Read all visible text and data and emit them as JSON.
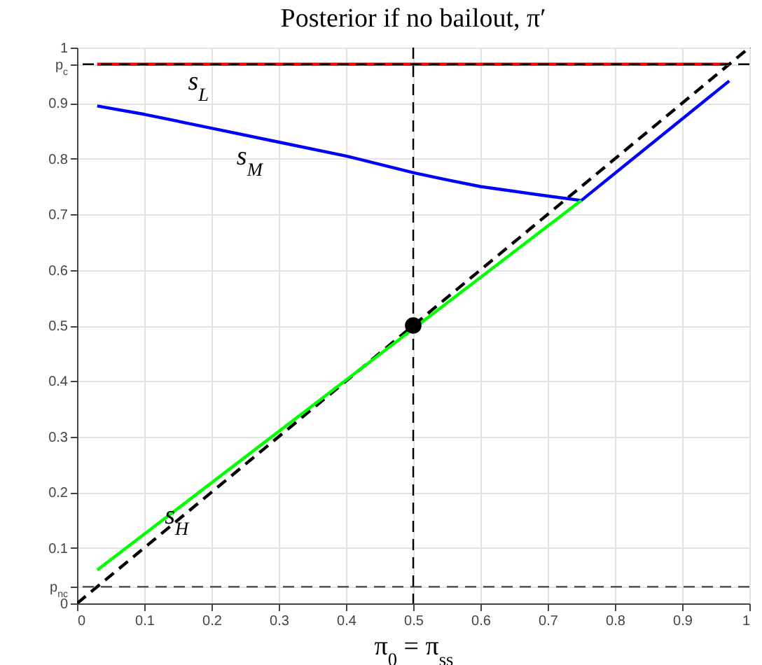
{
  "chart_data": {
    "type": "line",
    "title": "Posterior if no bailout, π′",
    "xlabel": "π$_{0}$ = π$_{ss}$",
    "xlim": [
      0,
      1
    ],
    "xticks": [
      0,
      0.1,
      0.2,
      0.3,
      0.4,
      0.5,
      0.6,
      0.7,
      0.8,
      0.9,
      1
    ],
    "ylim": [
      0,
      1
    ],
    "yticks": [
      0,
      {
        "value": 0.03,
        "label": "p$_{nc}$"
      },
      0.1,
      0.2,
      0.3,
      0.4,
      0.5,
      0.6,
      0.7,
      0.8,
      0.9,
      {
        "value": 0.97,
        "label": "p$_{c}$"
      },
      1
    ],
    "grid": true,
    "series": [
      {
        "color": "#000000",
        "line_style": "dashed",
        "x": [
          0,
          1
        ],
        "values": [
          0,
          1
        ]
      },
      {
        "color": "#ff0000",
        "x": [
          0.03,
          0.97
        ],
        "values": [
          0.97,
          0.97
        ]
      },
      {
        "color": "#0000ff",
        "x": [
          0.03,
          0.1,
          0.2,
          0.3,
          0.4,
          0.5,
          0.55,
          0.6,
          0.7,
          0.75,
          0.97
        ],
        "values": [
          0.895,
          0.88,
          0.855,
          0.83,
          0.805,
          0.775,
          0.762,
          0.75,
          0.733,
          0.725,
          0.94
        ]
      },
      {
        "color": "#00ff00",
        "x": [
          0.03,
          0.75
        ],
        "values": [
          0.06,
          0.725
        ]
      },
      {
        "type": "scatter",
        "color": "#000000",
        "marker": "circle",
        "x": [
          0.5
        ],
        "values": [
          0.5
        ]
      }
    ],
    "ref_lines": [
      {
        "axis": "y",
        "value": 0.97,
        "color": "#000000",
        "line_style": "dashed"
      },
      {
        "axis": "y",
        "value": 0.03,
        "color": "#555555",
        "line_style": "dashed"
      },
      {
        "axis": "x",
        "value": 0.5,
        "color": "#000000",
        "line_style": "dashed"
      }
    ],
    "annotations": [
      {
        "text": "s$_{L}$",
        "x": 0.2,
        "y": 0.97
      },
      {
        "text": "s$_{M}$",
        "x": 0.28,
        "y": 0.835
      },
      {
        "text": "s$_{H}$",
        "x": 0.17,
        "y": 0.189
      }
    ]
  }
}
